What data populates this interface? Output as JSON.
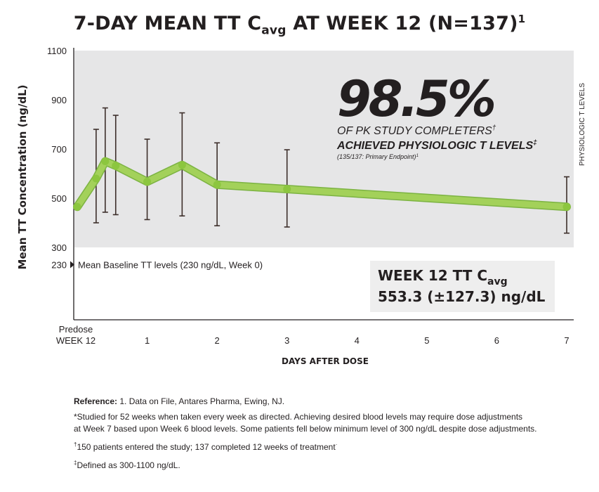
{
  "title": {
    "main": "7-DAY MEAN TT C",
    "sub": "avg",
    "rest": " AT WEEK 12 (N=137)",
    "sup": "1"
  },
  "callout": {
    "percent": "98.5%",
    "line1": "OF PK STUDY COMPLETERS",
    "line1_mark": "†",
    "line2": "ACHIEVED PHYSIOLOGIC T LEVELS",
    "line2_mark": "‡",
    "line3": "(135/137: Primary Endpoint)",
    "line3_mark": "1"
  },
  "result_box": {
    "line1_main": "WEEK 12 TT C",
    "line1_sub": "avg",
    "line2": "553.3 (±127.3) ng/dL"
  },
  "baseline": {
    "value": 230,
    "tick_label": "230",
    "label": "Mean Baseline TT levels (230 ng/dL, Week 0)"
  },
  "band": {
    "range": [
      300,
      1100
    ],
    "label": "PHYSIOLOGIC T LEVELS"
  },
  "colors": {
    "band": "#e6e6e7",
    "line": "#a3d15a",
    "line_dark": "#7cb342",
    "marker": "#8cc63f",
    "error_bar": "#3d2f2b",
    "text": "#231f20",
    "result_box": "#eeeeee"
  },
  "footnotes": {
    "reference_label": "Reference:",
    "reference_text": " 1. Data on File, Antares Pharma, Ewing, NJ.",
    "star": "*Studied for 52 weeks when taken every week as directed. Achieving desired blood levels may require dose adjustments",
    "star_cont": "at Week 7 based upon Week 6 blood levels. Some patients fell below minimum level of 300 ng/dL despite dose adjustments.",
    "dagger_mark": "†",
    "dagger": "150 patients entered the study; 137 completed 12 weeks of treatment",
    "dagger_end": "·",
    "ddagger_mark": "‡",
    "ddagger": "Defined as 300-1100 ng/dL."
  },
  "chart_data": {
    "type": "line",
    "title": "7-DAY MEAN TT Cavg AT WEEK 12 (N=137)",
    "xlabel": "DAYS AFTER DOSE",
    "ylabel": "Mean TT Concentration (ng/dL)",
    "xlim": [
      0,
      7
    ],
    "ylim": [
      0,
      1100
    ],
    "yticks": [
      300,
      500,
      700,
      900,
      1100
    ],
    "xticks": [
      {
        "value": 0,
        "label": [
          "Predose",
          "WEEK 12"
        ]
      },
      {
        "value": 1,
        "label": [
          "1"
        ]
      },
      {
        "value": 2,
        "label": [
          "2"
        ]
      },
      {
        "value": 3,
        "label": [
          "3"
        ]
      },
      {
        "value": 4,
        "label": [
          "4"
        ]
      },
      {
        "value": 5,
        "label": [
          "5"
        ]
      },
      {
        "value": 6,
        "label": [
          "6"
        ]
      },
      {
        "value": 7,
        "label": [
          "7"
        ]
      }
    ],
    "grid": false,
    "series": [
      {
        "points": [
          {
            "x": 0.0,
            "y": 465,
            "low": null,
            "high": null
          },
          {
            "x": 0.27,
            "y": 580,
            "low": 400,
            "high": 780
          },
          {
            "x": 0.4,
            "y": 650,
            "low": 443,
            "high": 867
          },
          {
            "x": 0.55,
            "y": 632,
            "low": 433,
            "high": 837
          },
          {
            "x": 1.0,
            "y": 567,
            "low": 413,
            "high": 740
          },
          {
            "x": 1.5,
            "y": 635,
            "low": 428,
            "high": 847
          },
          {
            "x": 2.0,
            "y": 555,
            "low": 388,
            "high": 725
          },
          {
            "x": 3.0,
            "y": 537,
            "low": 383,
            "high": 697
          },
          {
            "x": 7.0,
            "y": 465,
            "low": 358,
            "high": 587
          }
        ]
      }
    ]
  }
}
